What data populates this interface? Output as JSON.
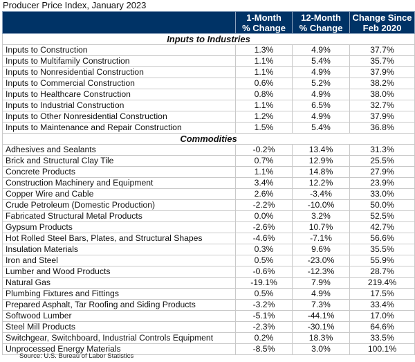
{
  "title": "Producer Price Index, January 2023",
  "columns": [
    "",
    "1-Month\n% Change",
    "12-Month\n% Change",
    "Change Since\nFeb 2020"
  ],
  "column_lines": [
    [
      "1-Month",
      "% Change"
    ],
    [
      "12-Month",
      "% Change"
    ],
    [
      "Change Since",
      "Feb 2020"
    ]
  ],
  "sections": [
    {
      "label": "Inputs to Industries",
      "rows": [
        [
          "Inputs to Construction",
          "1.3%",
          "4.9%",
          "37.7%"
        ],
        [
          "Inputs to Multifamily Construction",
          "1.1%",
          "5.4%",
          "35.7%"
        ],
        [
          "Inputs to Nonresidential Construction",
          "1.1%",
          "4.9%",
          "37.9%"
        ],
        [
          "Inputs to Commercial Construction",
          "0.6%",
          "5.2%",
          "38.2%"
        ],
        [
          "Inputs to Healthcare Construction",
          "0.8%",
          "4.9%",
          "38.0%"
        ],
        [
          "Inputs to Industrial Construction",
          "1.1%",
          "6.5%",
          "32.7%"
        ],
        [
          "Inputs to Other Nonresidential Construction",
          "1.2%",
          "4.9%",
          "37.9%"
        ],
        [
          "Inputs to Maintenance and Repair Construction",
          "1.5%",
          "5.4%",
          "36.8%"
        ]
      ]
    },
    {
      "label": "Commodities",
      "rows": [
        [
          "Adhesives and Sealants",
          "-0.2%",
          "13.4%",
          "31.3%"
        ],
        [
          "Brick and Structural Clay Tile",
          "0.7%",
          "12.9%",
          "25.5%"
        ],
        [
          "Concrete Products",
          "1.1%",
          "14.8%",
          "27.9%"
        ],
        [
          "Construction Machinery and Equipment",
          "3.4%",
          "12.2%",
          "23.9%"
        ],
        [
          "Copper Wire and Cable",
          "2.6%",
          "-3.4%",
          "33.0%"
        ],
        [
          "Crude Petroleum (Domestic Production)",
          "-2.2%",
          "-10.0%",
          "50.0%"
        ],
        [
          "Fabricated Structural Metal Products",
          "0.0%",
          "3.2%",
          "52.5%"
        ],
        [
          "Gypsum Products",
          "-2.6%",
          "10.7%",
          "42.7%"
        ],
        [
          "Hot Rolled Steel Bars, Plates, and Structural Shapes",
          "-4.6%",
          "-7.1%",
          "56.6%"
        ],
        [
          "Insulation Materials",
          "0.3%",
          "9.6%",
          "35.5%"
        ],
        [
          "Iron and Steel",
          "0.5%",
          "-23.0%",
          "55.9%"
        ],
        [
          "Lumber and Wood Products",
          "-0.6%",
          "-12.3%",
          "28.7%"
        ],
        [
          "Natural Gas",
          "-19.1%",
          "7.9%",
          "219.4%"
        ],
        [
          "Plumbing Fixtures and Fittings",
          "0.5%",
          "4.9%",
          "17.5%"
        ],
        [
          "Prepared Asphalt, Tar Roofing and Siding Products",
          "-3.2%",
          "7.3%",
          "33.4%"
        ],
        [
          "Softwood Lumber",
          "-5.1%",
          "-44.1%",
          "17.0%"
        ],
        [
          "Steel Mill Products",
          "-2.3%",
          "-30.1%",
          "64.6%"
        ],
        [
          "Switchgear, Switchboard, Industrial Controls Equipment",
          "0.2%",
          "18.3%",
          "33.5%"
        ],
        [
          "Unprocessed Energy Materials",
          "-8.5%",
          "3.0%",
          "100.1%"
        ]
      ]
    }
  ],
  "source": "Source: U.S. Bureau of Labor Statistics",
  "colors": {
    "header_bg": "#003366",
    "header_text": "#ffffff",
    "grid": "#c9c9c9"
  }
}
